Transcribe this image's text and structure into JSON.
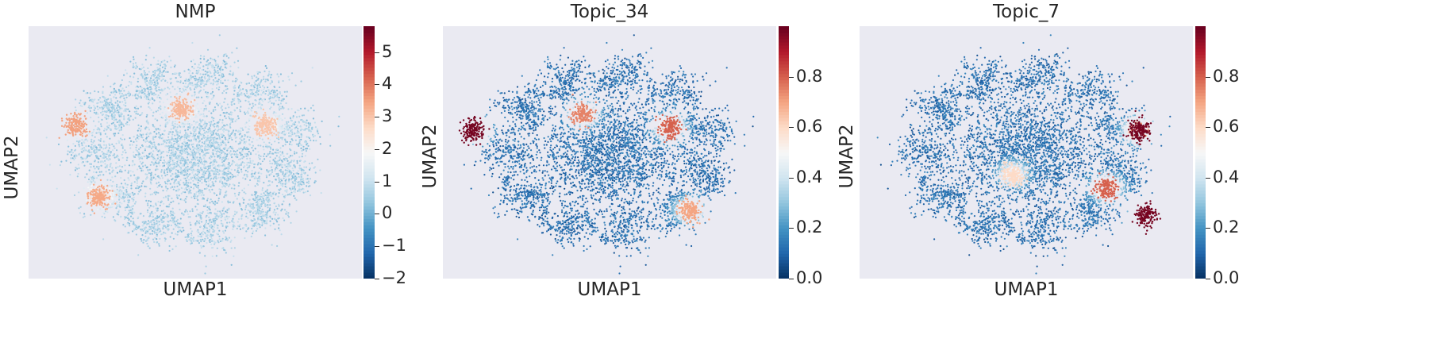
{
  "chart_data": [
    {
      "type": "scatter",
      "title": "NMP",
      "xlabel": "UMAP1",
      "ylabel": "UMAP2",
      "colorbar": {
        "colormap": "RdBu_r",
        "range": [
          -2,
          5.8
        ],
        "ticks": [
          -2,
          -1,
          0,
          1,
          2,
          3,
          4,
          5
        ],
        "tick_labels": [
          "−2",
          "−1",
          "0",
          "1",
          "2",
          "3",
          "4",
          "5"
        ]
      },
      "base_value": 0.6,
      "hotspots": [
        {
          "x": -3.6,
          "y": 1.0,
          "value": 3.5
        },
        {
          "x": -0.4,
          "y": 1.6,
          "value": 3.2
        },
        {
          "x": 2.1,
          "y": 1.0,
          "value": 3.0
        },
        {
          "x": -2.9,
          "y": -1.6,
          "value": 3.4
        }
      ]
    },
    {
      "type": "scatter",
      "title": "Topic_34",
      "xlabel": "UMAP1",
      "ylabel": "UMAP2",
      "colorbar": {
        "colormap": "RdBu_r",
        "range": [
          0,
          1.0
        ],
        "ticks": [
          0.0,
          0.2,
          0.4,
          0.6,
          0.8
        ],
        "tick_labels": [
          "0.0",
          "0.2",
          "0.4",
          "0.6",
          "0.8"
        ]
      },
      "base_value": 0.12,
      "hotspots": [
        {
          "x": -4.1,
          "y": 0.8,
          "value": 0.98
        },
        {
          "x": 2.4,
          "y": -2.1,
          "value": 0.7
        },
        {
          "x": 1.8,
          "y": 0.9,
          "value": 0.8
        },
        {
          "x": -0.8,
          "y": 1.4,
          "value": 0.75
        }
      ]
    },
    {
      "type": "scatter",
      "title": "Topic_7",
      "xlabel": "UMAP1",
      "ylabel": "UMAP2",
      "colorbar": {
        "colormap": "RdBu_r",
        "range": [
          0,
          1.0
        ],
        "ticks": [
          0.0,
          0.2,
          0.4,
          0.6,
          0.8
        ],
        "tick_labels": [
          "0.0",
          "0.2",
          "0.4",
          "0.6",
          "0.8"
        ]
      },
      "base_value": 0.12,
      "hotspots": [
        {
          "x": 3.4,
          "y": 0.8,
          "value": 0.98
        },
        {
          "x": 3.6,
          "y": -2.3,
          "value": 0.98
        },
        {
          "x": 2.4,
          "y": -1.3,
          "value": 0.8
        },
        {
          "x": -0.4,
          "y": -0.8,
          "value": 0.6
        }
      ]
    }
  ]
}
